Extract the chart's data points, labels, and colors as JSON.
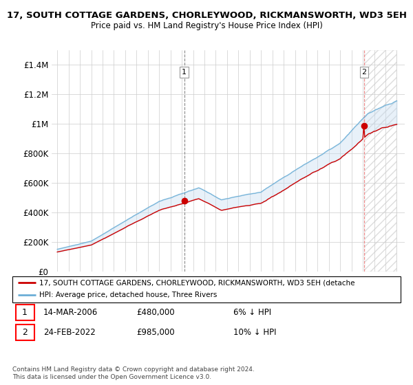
{
  "title": "17, SOUTH COTTAGE GARDENS, CHORLEYWOOD, RICKMANSWORTH, WD3 5EH",
  "subtitle": "Price paid vs. HM Land Registry's House Price Index (HPI)",
  "legend_line1": "17, SOUTH COTTAGE GARDENS, CHORLEYWOOD, RICKMANSWORTH, WD3 5EH (detache",
  "legend_line2": "HPI: Average price, detached house, Three Rivers",
  "transaction1_date": "14-MAR-2006",
  "transaction1_price": "£480,000",
  "transaction1_hpi": "6% ↓ HPI",
  "transaction2_date": "24-FEB-2022",
  "transaction2_price": "£985,000",
  "transaction2_hpi": "10% ↓ HPI",
  "footer": "Contains HM Land Registry data © Crown copyright and database right 2024.\nThis data is licensed under the Open Government Licence v3.0.",
  "hpi_color": "#6baed6",
  "price_color": "#cc0000",
  "fill_color": "#c6dcf0",
  "background_color": "#ffffff",
  "grid_color": "#cccccc",
  "ylim": [
    0,
    1500000
  ],
  "yticks": [
    0,
    200000,
    400000,
    600000,
    800000,
    1000000,
    1200000,
    1400000
  ],
  "t1_year": 2006.21,
  "t1_price": 480000,
  "t2_year": 2022.12,
  "t2_price": 985000
}
